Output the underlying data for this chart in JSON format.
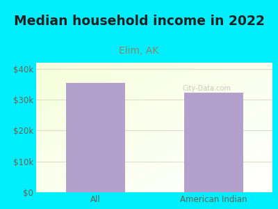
{
  "title": "Median household income in 2022",
  "subtitle": "Elim, AK",
  "categories": [
    "All",
    "American Indian"
  ],
  "values": [
    35500,
    32200
  ],
  "bar_color": "#b3a0cc",
  "title_fontsize": 13.5,
  "title_color": "#222222",
  "subtitle_fontsize": 10,
  "subtitle_color": "#888866",
  "tick_label_color": "#666655",
  "background_color": "#00eeff",
  "plot_bg_color_topleft": "#e8f5e8",
  "plot_bg_color_right": "#f8f8f8",
  "ylim": [
    0,
    42000
  ],
  "yticks": [
    0,
    10000,
    20000,
    30000,
    40000
  ],
  "ytick_labels": [
    "$0",
    "$10k",
    "$20k",
    "$30k",
    "$40k"
  ],
  "watermark": "City-Data.com",
  "grid_color": "#ddddcc",
  "bottom_line_color": "#999988"
}
